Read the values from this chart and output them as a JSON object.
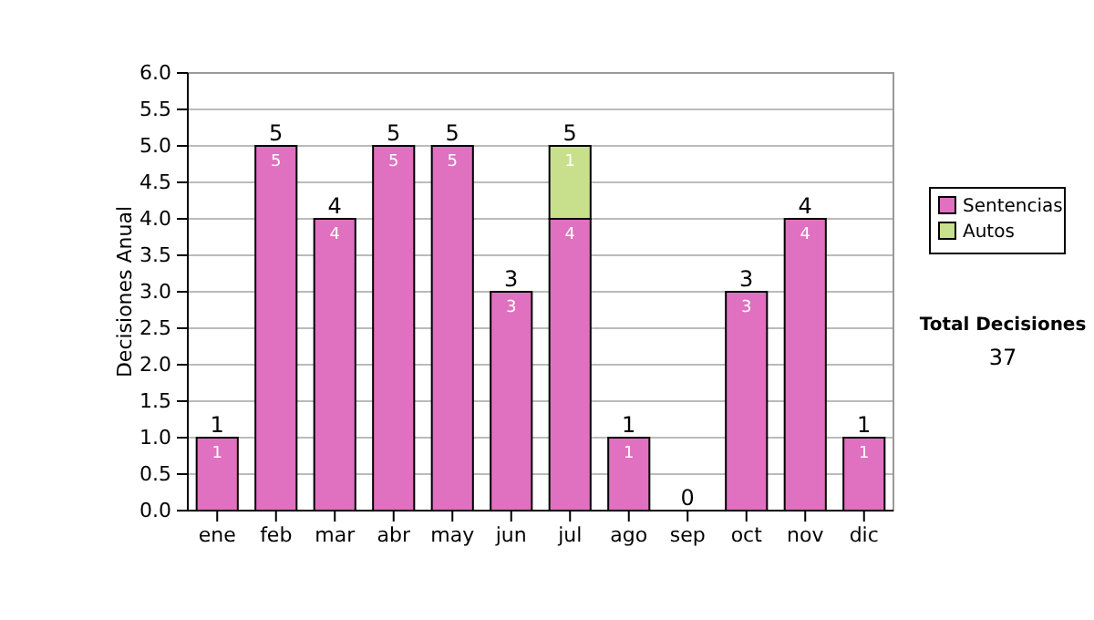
{
  "chart_data": {
    "type": "bar",
    "stacked": true,
    "categories": [
      "ene",
      "feb",
      "mar",
      "abr",
      "may",
      "jun",
      "jul",
      "ago",
      "sep",
      "oct",
      "nov",
      "dic"
    ],
    "series": [
      {
        "name": "Sentencias",
        "color": "#e070c0",
        "values": [
          1,
          5,
          4,
          5,
          5,
          3,
          4,
          1,
          0,
          3,
          4,
          1
        ],
        "value_labels": [
          "1",
          "5",
          "4",
          "5",
          "5",
          "3",
          "4",
          "1",
          null,
          "3",
          "4",
          "1"
        ]
      },
      {
        "name": "Autos",
        "color": "#c8e08c",
        "values": [
          0,
          0,
          0,
          0,
          0,
          0,
          1,
          0,
          0,
          0,
          0,
          0
        ],
        "value_labels": [
          null,
          null,
          null,
          null,
          null,
          null,
          "1",
          null,
          null,
          null,
          null,
          null
        ]
      }
    ],
    "totals": [
      "1",
      "5",
      "4",
      "5",
      "5",
      "3",
      "5",
      "1",
      "0",
      "3",
      "4",
      "1"
    ],
    "ylabel": "Decisiones Anual",
    "ylim": [
      0,
      6
    ],
    "yticks": [
      {
        "value": 0,
        "label": "0.0"
      },
      {
        "value": 0.5,
        "label": "0.5"
      },
      {
        "value": 1,
        "label": "1.0"
      },
      {
        "value": 1.5,
        "label": "1.5"
      },
      {
        "value": 2,
        "label": "2.0"
      },
      {
        "value": 2.5,
        "label": "2.5"
      },
      {
        "value": 3,
        "label": "3.0"
      },
      {
        "value": 3.5,
        "label": "3.5"
      },
      {
        "value": 4,
        "label": "4.0"
      },
      {
        "value": 4.5,
        "label": "4.5"
      },
      {
        "value": 5,
        "label": "5.0"
      },
      {
        "value": 5.5,
        "label": "5.5"
      },
      {
        "value": 6,
        "label": "6.0"
      }
    ],
    "grid": "y",
    "legend": "right",
    "annotations": [
      "Total Decisiones",
      "37"
    ]
  }
}
